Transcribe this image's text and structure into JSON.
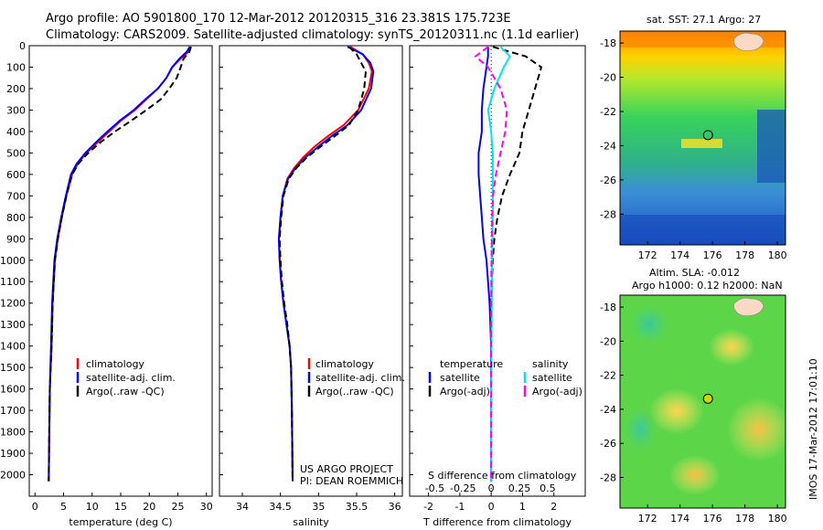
{
  "header": {
    "line1": "Argo profile: AO 5901800_170 12-Mar-2012 20120315_316 23.381S 175.723E",
    "line2": "Climatology: CARS2009. Satellite-adjusted climatology: synTS_20120311.nc (1.1d earlier)"
  },
  "colors": {
    "climatology": "#ff0000",
    "satellite": "#0000ff",
    "argo": "#000000",
    "sal_satellite": "#00e5e5",
    "sal_argo": "#ff00ff"
  },
  "credits": {
    "project": "US ARGO PROJECT",
    "pi": "PI: DEAN ROEMMICH",
    "stamp": "IMOS 17-Mar-2012 17:01:10"
  },
  "chart_data": [
    {
      "type": "line",
      "id": "temperature",
      "xlabel": "temperature (deg C)",
      "ylabel": "",
      "xlim": [
        -1,
        31
      ],
      "ylim": [
        2100,
        0
      ],
      "xticks": [
        "0",
        "5",
        "10",
        "15",
        "20",
        "25",
        "30"
      ],
      "xtick_values": [
        0,
        5,
        10,
        15,
        20,
        25,
        30
      ],
      "yticks": [
        "0",
        "100",
        "200",
        "300",
        "400",
        "500",
        "600",
        "700",
        "800",
        "900",
        "1000",
        "1100",
        "1200",
        "1300",
        "1400",
        "1500",
        "1600",
        "1700",
        "1800",
        "1900",
        "2000"
      ],
      "ytick_values": [
        0,
        100,
        200,
        300,
        400,
        500,
        600,
        700,
        800,
        900,
        1000,
        1100,
        1200,
        1300,
        1400,
        1500,
        1600,
        1700,
        1800,
        1900,
        2000
      ],
      "legend": [
        "climatology",
        "satellite-adj. clim.",
        "Argo(..raw -QC)"
      ],
      "series": [
        {
          "name": "climatology",
          "style": "solid",
          "x": [
            27.3,
            26.8,
            25.5,
            24.0,
            23.0,
            21.5,
            19.5,
            17.5,
            15.0,
            13.0,
            11.0,
            9.0,
            7.5,
            6.5,
            5.5,
            4.7,
            4.0,
            3.5,
            3.1,
            2.9,
            2.6,
            2.5,
            2.4
          ],
          "y": [
            5,
            30,
            60,
            100,
            150,
            200,
            250,
            300,
            350,
            400,
            450,
            500,
            550,
            600,
            700,
            800,
            900,
            1000,
            1200,
            1400,
            1600,
            1800,
            2030
          ]
        },
        {
          "name": "satellite-adj. clim.",
          "style": "solid",
          "x": [
            27.1,
            26.5,
            25.3,
            24.0,
            23.0,
            21.5,
            19.3,
            17.3,
            14.8,
            12.7,
            10.7,
            8.8,
            7.3,
            6.3,
            5.4,
            4.6,
            3.9,
            3.4,
            3.0,
            2.8,
            2.6,
            2.5,
            2.4
          ],
          "y": [
            5,
            30,
            60,
            100,
            150,
            200,
            250,
            300,
            350,
            400,
            450,
            500,
            550,
            600,
            700,
            800,
            900,
            1000,
            1200,
            1400,
            1600,
            1800,
            2030
          ]
        },
        {
          "name": "Argo(..raw -QC)",
          "style": "dash",
          "x": [
            27.3,
            27.0,
            26.0,
            25.5,
            24.8,
            23.5,
            22.0,
            19.5,
            16.8,
            14.0,
            11.5,
            9.3,
            7.6,
            6.5,
            5.5,
            4.7,
            4.0,
            3.5,
            3.1,
            2.9,
            2.6,
            2.5,
            2.4
          ],
          "y": [
            5,
            30,
            60,
            100,
            150,
            200,
            250,
            300,
            350,
            400,
            450,
            500,
            550,
            600,
            700,
            800,
            900,
            1000,
            1200,
            1400,
            1600,
            1800,
            2030
          ]
        }
      ]
    },
    {
      "type": "line",
      "id": "salinity",
      "xlabel": "salinity",
      "xlim": [
        33.7,
        36.1
      ],
      "ylim": [
        2100,
        0
      ],
      "xticks": [
        "34",
        "34.5",
        "35",
        "35.5",
        "36"
      ],
      "xtick_values": [
        34,
        34.5,
        35,
        35.5,
        36
      ],
      "legend": [
        "climatology",
        "satellite-adj. clim.",
        "Argo(..raw -QC)"
      ],
      "series": [
        {
          "name": "climatology",
          "style": "solid",
          "x": [
            35.42,
            35.58,
            35.66,
            35.7,
            35.66,
            35.52,
            35.33,
            35.13,
            34.95,
            34.8,
            34.68,
            34.59,
            34.53,
            34.5,
            34.48,
            34.49,
            34.51,
            34.54,
            34.58,
            34.62,
            34.64,
            34.65,
            34.66
          ],
          "y": [
            5,
            40,
            80,
            120,
            200,
            300,
            370,
            420,
            470,
            520,
            570,
            620,
            700,
            800,
            900,
            1000,
            1100,
            1200,
            1300,
            1400,
            1500,
            1700,
            2030
          ]
        },
        {
          "name": "satellite-adj. clim.",
          "style": "solid",
          "x": [
            35.38,
            35.58,
            35.68,
            35.72,
            35.69,
            35.56,
            35.38,
            35.18,
            35.0,
            34.83,
            34.7,
            34.6,
            34.53,
            34.5,
            34.48,
            34.49,
            34.51,
            34.54,
            34.58,
            34.62,
            34.64,
            34.65,
            34.66
          ],
          "y": [
            5,
            40,
            80,
            120,
            200,
            300,
            370,
            420,
            470,
            520,
            570,
            620,
            700,
            800,
            900,
            1000,
            1100,
            1200,
            1300,
            1400,
            1500,
            1700,
            2030
          ]
        },
        {
          "name": "Argo(..raw -QC)",
          "style": "dash",
          "x": [
            35.4,
            35.5,
            35.56,
            35.62,
            35.6,
            35.52,
            35.4,
            35.22,
            35.03,
            34.85,
            34.71,
            34.61,
            34.54,
            34.51,
            34.49,
            34.5,
            34.52,
            34.55,
            34.59,
            34.62,
            34.64,
            34.65,
            34.66
          ],
          "y": [
            5,
            40,
            80,
            120,
            200,
            300,
            370,
            420,
            470,
            520,
            570,
            620,
            700,
            800,
            900,
            1000,
            1100,
            1200,
            1300,
            1400,
            1500,
            1700,
            2030
          ]
        }
      ]
    },
    {
      "type": "line",
      "id": "difference",
      "xlabel": "T difference from climatology",
      "xlabel_top": "S difference from climatology",
      "xlim": [
        -2.6,
        3.0
      ],
      "ylim": [
        2100,
        0
      ],
      "xticks": [
        "-2",
        "-1",
        "0",
        "1",
        "2"
      ],
      "xtick_values": [
        -2,
        -1,
        0,
        1,
        2
      ],
      "sticks": [
        "-0.5",
        "-0.25",
        "0",
        "0.25",
        "0.5"
      ],
      "stick_values": [
        -1.8,
        -0.9,
        0,
        0.9,
        1.8
      ],
      "legend_temperature": {
        "title": "temperature",
        "items": [
          "satellite",
          "Argo(-adj)"
        ]
      },
      "legend_salinity": {
        "title": "salinity",
        "items": [
          "satellite",
          "Argo(-adj)"
        ]
      },
      "series": [
        {
          "name": "T satellite",
          "style": "solid",
          "x": [
            -0.1,
            -0.1,
            -0.15,
            -0.25,
            -0.3,
            -0.3,
            -0.4,
            -0.4,
            -0.35,
            -0.3,
            -0.25,
            -0.15,
            -0.05,
            0.0,
            0.0,
            0.0,
            0.0
          ],
          "y": [
            5,
            50,
            100,
            200,
            300,
            400,
            500,
            600,
            700,
            800,
            900,
            1000,
            1200,
            1400,
            1600,
            1800,
            2030
          ]
        },
        {
          "name": "T Argo(-adj)",
          "style": "dash",
          "x": [
            0.05,
            1.1,
            1.6,
            1.4,
            1.2,
            1.0,
            0.9,
            0.6,
            0.35,
            0.2,
            0.1,
            0.05,
            0.0,
            0.0,
            0.0,
            0.0,
            0.0
          ],
          "y": [
            5,
            50,
            100,
            200,
            300,
            400,
            500,
            600,
            700,
            800,
            900,
            1000,
            1200,
            1400,
            1600,
            1800,
            2030
          ]
        },
        {
          "name": "S satellite",
          "style": "solid",
          "x": [
            0.3,
            0.6,
            0.4,
            0.1,
            -0.1,
            0.0,
            0.05,
            0.05,
            0.05,
            0.05,
            0.04,
            0.03,
            0.02,
            0.01,
            0.0,
            0.0,
            0.0
          ],
          "y": [
            5,
            50,
            100,
            200,
            300,
            400,
            500,
            600,
            700,
            800,
            900,
            1000,
            1200,
            1400,
            1600,
            1800,
            2030
          ]
        },
        {
          "name": "S Argo(-adj)",
          "style": "dash",
          "x": [
            -0.1,
            -0.5,
            -0.1,
            0.3,
            0.5,
            0.45,
            0.3,
            0.15,
            0.06,
            0.03,
            0.02,
            0.01,
            0.0,
            0.0,
            0.0,
            0.0,
            0.0
          ],
          "y": [
            5,
            50,
            100,
            200,
            300,
            400,
            500,
            600,
            700,
            800,
            900,
            1000,
            1200,
            1400,
            1600,
            1800,
            2030
          ]
        }
      ]
    },
    {
      "type": "heatmap",
      "id": "sst_map",
      "title": "sat. SST: 27.1  Argo: 27",
      "xticks": [
        "172",
        "174",
        "176",
        "178",
        "180"
      ],
      "xtick_values": [
        172,
        174,
        176,
        178,
        180
      ],
      "yticks": [
        "-18",
        "-20",
        "-22",
        "-24",
        "-26",
        "-28"
      ],
      "ytick_values": [
        -18,
        -20,
        -22,
        -24,
        -26,
        -28
      ],
      "xlim": [
        170.3,
        180.5
      ],
      "ylim": [
        -29.8,
        -17.3
      ],
      "marker": {
        "lon": 175.723,
        "lat": -23.381
      }
    },
    {
      "type": "heatmap",
      "id": "sla_map",
      "title": "Altim. SLA: -0.012",
      "subtitle": "Argo h1000: 0.12  h2000: NaN",
      "xticks": [
        "172",
        "174",
        "176",
        "178",
        "180"
      ],
      "xtick_values": [
        172,
        174,
        176,
        178,
        180
      ],
      "yticks": [
        "-18",
        "-20",
        "-22",
        "-24",
        "-26",
        "-28"
      ],
      "ytick_values": [
        -18,
        -20,
        -22,
        -24,
        -26,
        -28
      ],
      "xlim": [
        170.3,
        180.5
      ],
      "ylim": [
        -29.8,
        -17.3
      ],
      "marker": {
        "lon": 175.723,
        "lat": -23.381
      }
    }
  ]
}
